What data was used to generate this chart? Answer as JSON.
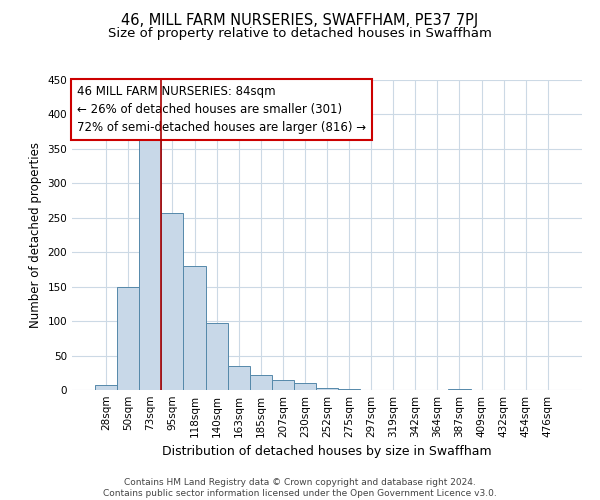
{
  "title": "46, MILL FARM NURSERIES, SWAFFHAM, PE37 7PJ",
  "subtitle": "Size of property relative to detached houses in Swaffham",
  "xlabel": "Distribution of detached houses by size in Swaffham",
  "ylabel": "Number of detached properties",
  "bar_labels": [
    "28sqm",
    "50sqm",
    "73sqm",
    "95sqm",
    "118sqm",
    "140sqm",
    "163sqm",
    "185sqm",
    "207sqm",
    "230sqm",
    "252sqm",
    "275sqm",
    "297sqm",
    "319sqm",
    "342sqm",
    "364sqm",
    "387sqm",
    "409sqm",
    "432sqm",
    "454sqm",
    "476sqm"
  ],
  "bar_values": [
    7,
    150,
    370,
    257,
    180,
    97,
    35,
    22,
    14,
    10,
    3,
    1,
    0,
    0,
    0,
    0,
    2,
    0,
    0,
    0,
    0
  ],
  "bar_color": "#c8d8e8",
  "bar_edge_color": "#5588aa",
  "vline_x_index": 2,
  "vline_color": "#aa0000",
  "ylim": [
    0,
    450
  ],
  "yticks": [
    0,
    50,
    100,
    150,
    200,
    250,
    300,
    350,
    400,
    450
  ],
  "annotation_line1": "46 MILL FARM NURSERIES: 84sqm",
  "annotation_line2": "← 26% of detached houses are smaller (301)",
  "annotation_line3": "72% of semi-detached houses are larger (816) →",
  "annotation_box_color": "#ffffff",
  "annotation_box_edge": "#cc0000",
  "footer1": "Contains HM Land Registry data © Crown copyright and database right 2024.",
  "footer2": "Contains public sector information licensed under the Open Government Licence v3.0.",
  "bg_color": "#ffffff",
  "grid_color": "#ccd9e5",
  "title_fontsize": 10.5,
  "subtitle_fontsize": 9.5,
  "xlabel_fontsize": 9,
  "ylabel_fontsize": 8.5,
  "tick_fontsize": 7.5,
  "annotation_fontsize": 8.5,
  "footer_fontsize": 6.5
}
